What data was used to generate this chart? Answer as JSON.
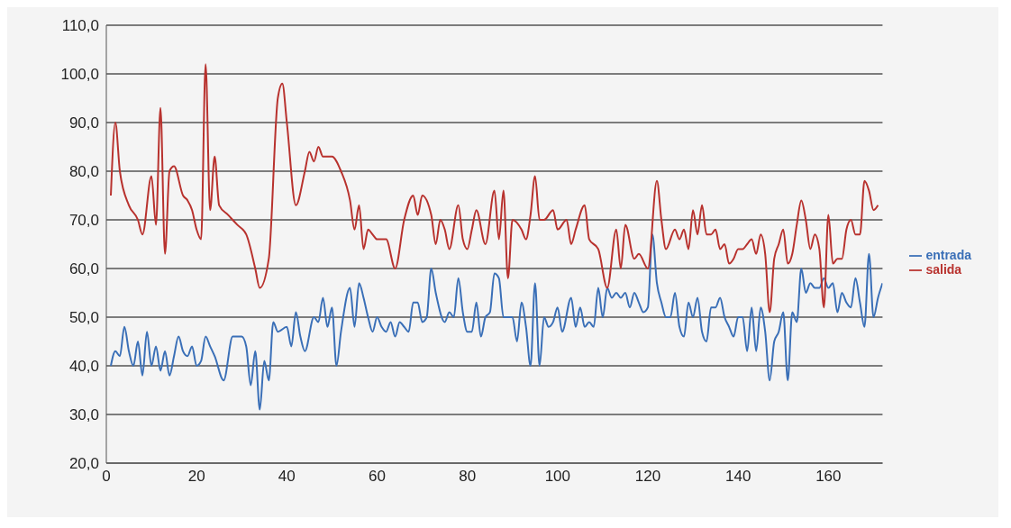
{
  "chart_data": {
    "type": "line",
    "xlim": [
      0,
      172
    ],
    "xticks": [
      0,
      20,
      40,
      60,
      80,
      100,
      120,
      140,
      160
    ],
    "ylim": [
      20,
      110
    ],
    "yticks": [
      {
        "value": 20,
        "label": "20,0"
      },
      {
        "value": 30,
        "label": "30,0"
      },
      {
        "value": 40,
        "label": "40,0"
      },
      {
        "value": 50,
        "label": "50,0"
      },
      {
        "value": 60,
        "label": "60,0"
      },
      {
        "value": 70,
        "label": "70,0"
      },
      {
        "value": 80,
        "label": "80,0"
      },
      {
        "value": 90,
        "label": "90,0"
      },
      {
        "value": 100,
        "label": "100,0"
      },
      {
        "value": 110,
        "label": "110,0"
      }
    ],
    "grid": "y",
    "legend": "right",
    "marker": "none",
    "line_style": "solid",
    "series": [
      {
        "name": "entrada",
        "color": "#3a6fb7",
        "x": [
          1,
          2,
          3,
          4,
          5,
          6,
          7,
          8,
          9,
          10,
          11,
          12,
          13,
          14,
          15,
          16,
          17,
          18,
          19,
          20,
          21,
          22,
          23,
          24,
          26,
          28,
          30,
          31,
          32,
          33,
          34,
          35,
          36,
          37,
          38,
          40,
          41,
          42,
          43,
          44,
          46,
          47,
          48,
          49,
          50,
          51,
          52,
          54,
          55,
          56,
          57,
          58,
          59,
          60,
          61,
          62,
          63,
          64,
          65,
          66,
          67,
          68,
          69,
          70,
          71,
          72,
          73,
          75,
          76,
          77,
          78,
          79,
          80,
          81,
          82,
          83,
          84,
          85,
          86,
          87,
          88,
          90,
          91,
          92,
          93,
          94,
          95,
          96,
          97,
          98,
          99,
          100,
          101,
          103,
          104,
          105,
          106,
          107,
          108,
          109,
          110,
          111,
          112,
          113,
          114,
          115,
          116,
          117,
          118,
          119,
          120,
          121,
          122,
          123,
          124,
          125,
          126,
          127,
          128,
          129,
          130,
          131,
          132,
          133,
          134,
          135,
          136,
          137,
          138,
          139,
          140,
          141,
          142,
          143,
          144,
          145,
          146,
          147,
          148,
          149,
          150,
          151,
          152,
          153,
          154,
          155,
          156,
          157,
          158,
          159,
          160,
          161,
          162,
          163,
          164,
          165,
          166,
          167,
          168,
          169,
          170,
          171,
          172
        ],
        "values": [
          40,
          43,
          42,
          48,
          43,
          40,
          45,
          38,
          47,
          40,
          44,
          39,
          43,
          38,
          42,
          46,
          43,
          42,
          44,
          40,
          41,
          46,
          44,
          42,
          37,
          46,
          46,
          44,
          36,
          43,
          31,
          41,
          37,
          49,
          47,
          48,
          44,
          51,
          46,
          43,
          50,
          49,
          54,
          48,
          52,
          40,
          47,
          56,
          48,
          57,
          54,
          50,
          47,
          50,
          48,
          47,
          49,
          46,
          49,
          48,
          47,
          53,
          53,
          49,
          50,
          60,
          55,
          49,
          51,
          50,
          58,
          51,
          47,
          47,
          53,
          46,
          50,
          51,
          59,
          58,
          50,
          50,
          45,
          53,
          48,
          40,
          57,
          40,
          50,
          48,
          49,
          52,
          47,
          54,
          48,
          52,
          48,
          49,
          48,
          56,
          50,
          56,
          54,
          55,
          54,
          55,
          52,
          55,
          53,
          51,
          52,
          67,
          57,
          53,
          50,
          50,
          55,
          48,
          46,
          53,
          50,
          54,
          47,
          45,
          52,
          52,
          54,
          50,
          48,
          46,
          50,
          50,
          43,
          52,
          43,
          52,
          47,
          37,
          45,
          47,
          51,
          37,
          51,
          49,
          60,
          55,
          57,
          56,
          56,
          58,
          56,
          57,
          51,
          55,
          53,
          52,
          58,
          53,
          48,
          63,
          50,
          54,
          57
        ]
      },
      {
        "name": "salida",
        "color": "#b8322e",
        "x": [
          1,
          2,
          3,
          5,
          7,
          8,
          10,
          11,
          12,
          13,
          14,
          15,
          17,
          18,
          19,
          20,
          21,
          22,
          23,
          24,
          25,
          27,
          29,
          31,
          33,
          34,
          36,
          38,
          39,
          40,
          42,
          44,
          45,
          46,
          47,
          48,
          50,
          52,
          54,
          55,
          56,
          57,
          58,
          59,
          60,
          62,
          64,
          66,
          68,
          69,
          70,
          72,
          73,
          74,
          75,
          76,
          78,
          79,
          80,
          81,
          82,
          84,
          86,
          87,
          88,
          89,
          90,
          92,
          93,
          94,
          95,
          96,
          97,
          99,
          100,
          102,
          103,
          104,
          106,
          107,
          109,
          111,
          113,
          114,
          115,
          117,
          118,
          120,
          122,
          123,
          124,
          126,
          127,
          128,
          129,
          130,
          131,
          132,
          133,
          134,
          135,
          136,
          137,
          138,
          139,
          140,
          141,
          142,
          143,
          144,
          145,
          146,
          147,
          148,
          149,
          150,
          151,
          152,
          153,
          154,
          155,
          156,
          157,
          158,
          159,
          160,
          161,
          162,
          163,
          164,
          165,
          166,
          167,
          168,
          169,
          170,
          171
        ],
        "values": [
          75,
          90,
          80,
          73,
          70,
          67,
          79,
          69,
          93,
          63,
          80,
          81,
          75,
          74,
          72,
          68,
          66,
          102,
          72,
          83,
          73,
          71,
          69,
          67,
          60,
          56,
          62,
          95,
          98,
          90,
          73,
          80,
          84,
          82,
          85,
          83,
          83,
          80,
          74,
          68,
          73,
          64,
          68,
          67,
          66,
          66,
          60,
          70,
          75,
          71,
          75,
          71,
          65,
          70,
          68,
          64,
          73,
          66,
          64,
          68,
          72,
          65,
          76,
          66,
          76,
          58,
          70,
          68,
          66,
          71,
          79,
          70,
          70,
          72,
          68,
          70,
          65,
          68,
          73,
          66,
          64,
          56,
          68,
          60,
          69,
          62,
          63,
          60,
          78,
          70,
          64,
          68,
          66,
          68,
          64,
          72,
          67,
          73,
          67,
          67,
          68,
          64,
          65,
          61,
          62,
          64,
          64,
          65,
          66,
          63,
          67,
          63,
          51,
          62,
          65,
          68,
          61,
          63,
          69,
          74,
          70,
          64,
          67,
          64,
          52,
          71,
          61,
          62,
          62,
          68,
          70,
          67,
          67,
          78,
          76,
          72,
          73
        ]
      }
    ]
  }
}
